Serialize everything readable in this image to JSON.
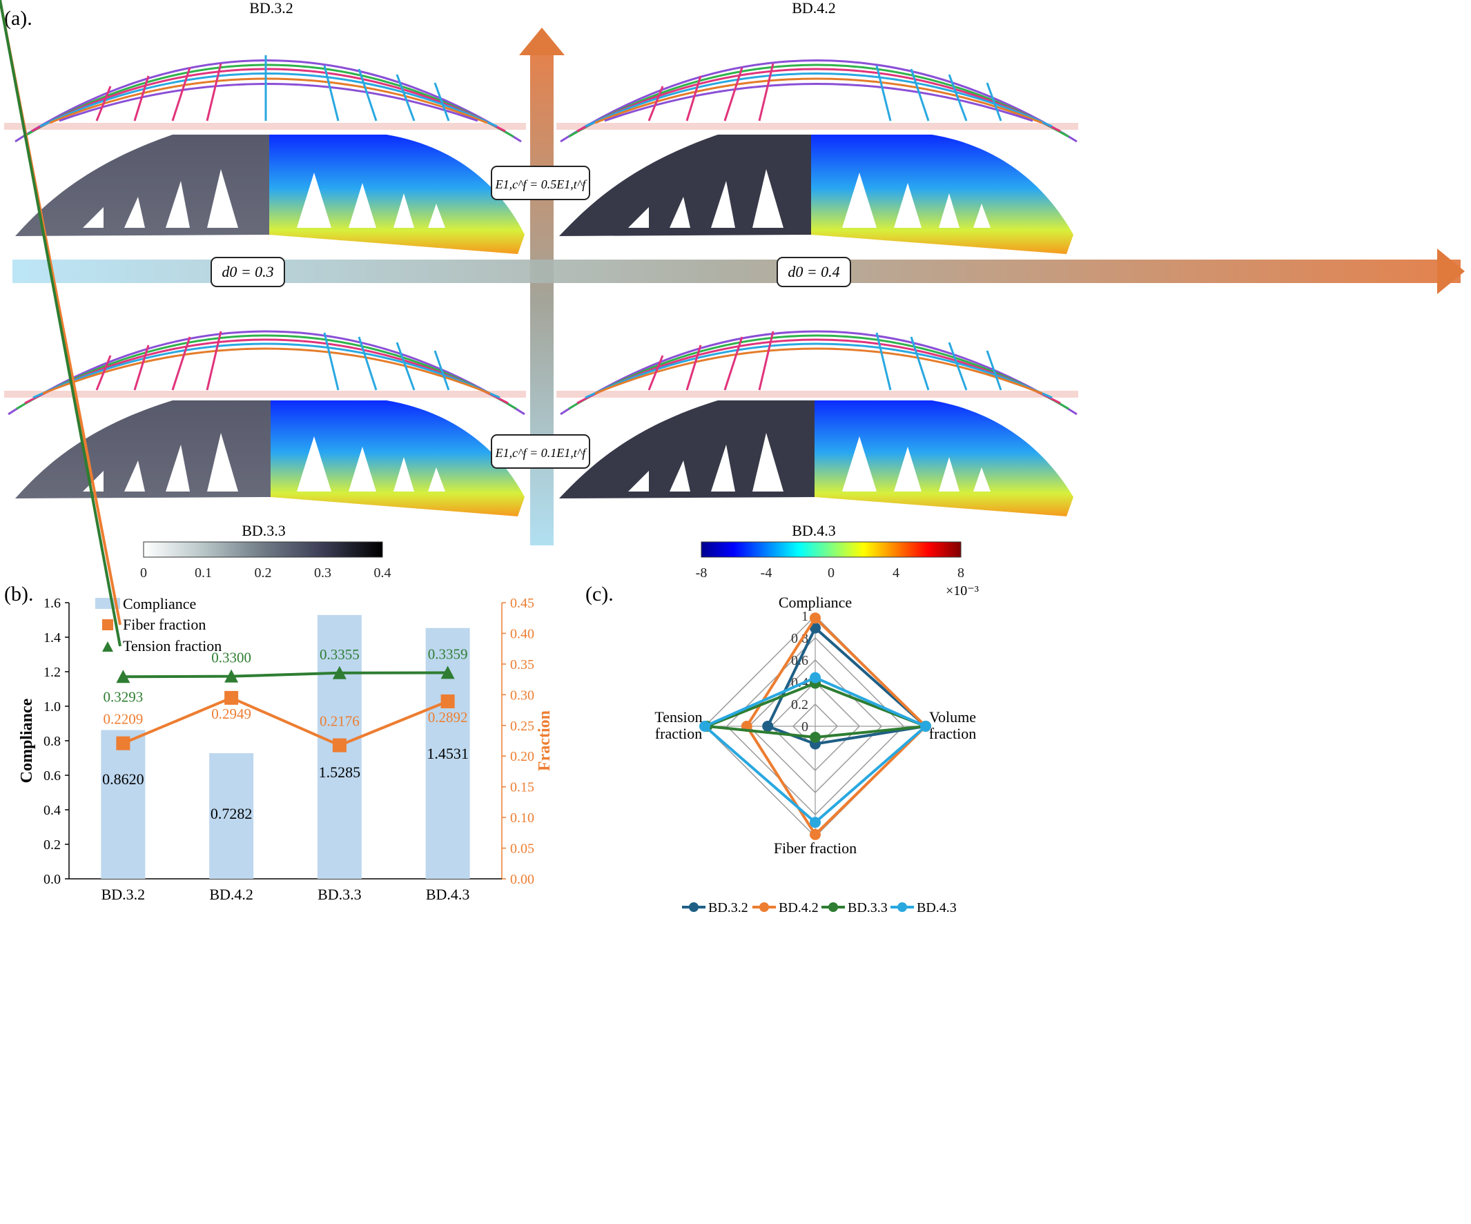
{
  "panel_a": {
    "label": "(a).",
    "titles": {
      "top_left": "BD.3.2",
      "top_right": "BD.4.2",
      "bottom_left": "BD.3.3",
      "bottom_right": "BD.4.3"
    },
    "annotations": {
      "upper": "E1,c^f = 0.5E1,t^f",
      "lower": "E1,c^f = 0.1E1,t^f",
      "left": "d0 = 0.3",
      "right": "d0 = 0.4"
    },
    "colorbar_gray": {
      "ticks": [
        "0",
        "0.1",
        "0.2",
        "0.3",
        "0.4"
      ]
    },
    "colorbar_jet": {
      "ticks": [
        "-8",
        "-4",
        "0",
        "4",
        "8"
      ],
      "multiplier": "×10⁻³"
    },
    "colors": {
      "arrow_orange": "#e07a3c",
      "arrow_blue": "#a9dcf0",
      "grey_design": "#3b3f52",
      "jet_high": "#b40000",
      "jet_low": "#00008f"
    }
  },
  "chart_data": [
    {
      "type": "bar",
      "panel_label": "(b).",
      "categories": [
        "BD.3.2",
        "BD.4.2",
        "BD.3.3",
        "BD.4.3"
      ],
      "series": [
        {
          "name": "Compliance",
          "kind": "bar",
          "axis": "left",
          "values": [
            0.862,
            0.7282,
            1.5285,
            1.4531
          ],
          "labels": [
            "0.8620",
            "0.7282",
            "1.5285",
            "1.4531"
          ],
          "color": "#bdd7ee"
        },
        {
          "name": "Fiber fraction",
          "kind": "line",
          "axis": "right",
          "values": [
            0.2209,
            0.2949,
            0.2176,
            0.2892
          ],
          "labels": [
            "0.2209",
            "0.2949",
            "0.2176",
            "0.2892"
          ],
          "color": "#ed7d31"
        },
        {
          "name": "Tension fraction",
          "kind": "line",
          "axis": "right",
          "values": [
            0.3293,
            0.33,
            0.3355,
            0.3359
          ],
          "labels": [
            "0.3293",
            "0.3300",
            "0.3355",
            "0.3359"
          ],
          "color": "#2e7d32"
        }
      ],
      "ylabel": "Compliance",
      "y2label": "Fraction",
      "ylim": [
        0,
        1.6
      ],
      "y2lim": [
        0,
        0.45
      ],
      "yticks": [
        "0.0",
        "0.2",
        "0.4",
        "0.6",
        "0.8",
        "1.0",
        "1.2",
        "1.4",
        "1.6"
      ],
      "y2ticks": [
        "0.00",
        "0.05",
        "0.10",
        "0.15",
        "0.20",
        "0.25",
        "0.30",
        "0.35",
        "0.40",
        "0.45"
      ],
      "legend": "top-left",
      "grid": false
    },
    {
      "type": "radar",
      "panel_label": "(c).",
      "axes": [
        "Compliance",
        "Volume fraction",
        "Fiber fraction",
        "Tension fraction"
      ],
      "axis_labels": {
        "compliance": "Compliance",
        "volume": [
          "Volume",
          "fraction"
        ],
        "fiber": "Fiber fraction",
        "tension": [
          "Tension",
          "fraction"
        ]
      },
      "rlim": [
        0,
        1
      ],
      "rticks": [
        "0",
        "0.2",
        "0.4",
        "0.6",
        "0.8",
        "1"
      ],
      "series": [
        {
          "name": "BD.3.2",
          "values": [
            0.89,
            1.0,
            0.16,
            0.43
          ],
          "color": "#1f5f86"
        },
        {
          "name": "BD.4.2",
          "values": [
            0.98,
            1.0,
            0.98,
            0.62
          ],
          "color": "#ed7d31"
        },
        {
          "name": "BD.3.3",
          "values": [
            0.39,
            1.0,
            0.1,
            0.98
          ],
          "color": "#2e7d32"
        },
        {
          "name": "BD.4.3",
          "values": [
            0.44,
            1.0,
            0.87,
            1.0
          ],
          "color": "#29a8e0"
        }
      ],
      "legend": "bottom",
      "grid": true
    }
  ]
}
